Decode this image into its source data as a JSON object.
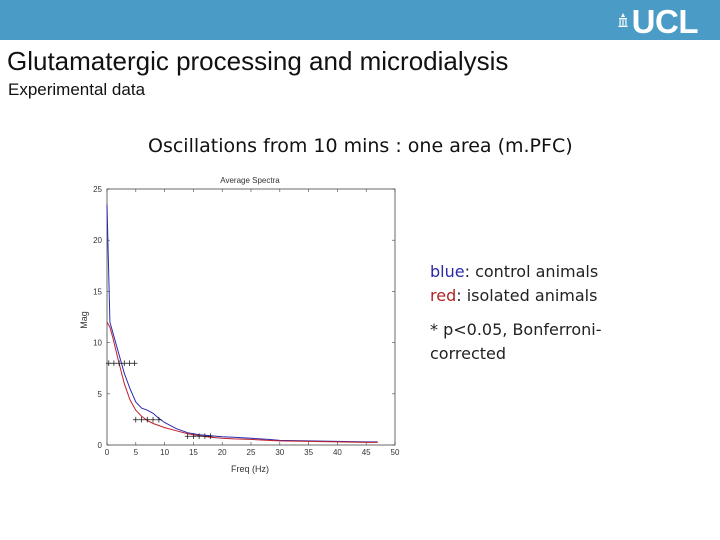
{
  "header": {
    "logo_text": "UCL",
    "bar_color": "#4a9bc6"
  },
  "slide": {
    "title": "Glutamatergic processing and microdialysis",
    "subtitle": "Experimental data",
    "heading": "Oscillations from 10 mins : one area (m.PFC)"
  },
  "legend": {
    "blue_word": "blue",
    "blue_rest": ": control animals",
    "red_word": "red",
    "red_rest": ": isolated animals",
    "note_line1": "* p<0.05, Bonferroni-",
    "note_line2": "corrected"
  },
  "chart_data": {
    "type": "line",
    "title": "Average Spectra",
    "xlabel": "Freq (Hz)",
    "ylabel": "Mag",
    "xlim": [
      0,
      50
    ],
    "ylim": [
      0,
      25
    ],
    "xticks": [
      0,
      5,
      10,
      15,
      20,
      25,
      30,
      35,
      40,
      45,
      50
    ],
    "yticks": [
      0,
      5,
      10,
      15,
      20,
      25
    ],
    "grid": false,
    "x": [
      0,
      0.5,
      1,
      2,
      3,
      4,
      5,
      6,
      7,
      8,
      9,
      10,
      12,
      14,
      16,
      18,
      20,
      22,
      25,
      28,
      30,
      35,
      40,
      45,
      47
    ],
    "series": [
      {
        "color": "#2a2ab0",
        "values": [
          23.5,
          12,
          11,
          9,
          7,
          5.5,
          4.2,
          3.6,
          3.4,
          3.1,
          2.6,
          2.2,
          1.6,
          1.2,
          1.0,
          0.9,
          0.8,
          0.75,
          0.65,
          0.55,
          0.45,
          0.4,
          0.35,
          0.3,
          0.3
        ]
      },
      {
        "color": "#c0202a",
        "values": [
          12,
          11.5,
          10.5,
          8.2,
          6,
          4.4,
          3.4,
          2.8,
          2.4,
          2.1,
          1.9,
          1.7,
          1.4,
          1.1,
          0.9,
          0.75,
          0.65,
          0.6,
          0.55,
          0.45,
          0.4,
          0.35,
          0.3,
          0.25,
          0.25
        ]
      }
    ],
    "significance_markers": {
      "symbol": "+",
      "groups": [
        {
          "x": [
            0.3,
            1.2,
            2.1,
            3.0,
            3.9,
            4.8
          ],
          "y": 8
        },
        {
          "x": [
            5.0,
            6.0,
            7.0,
            8.0,
            9.0
          ],
          "y": 2.5
        },
        {
          "x": [
            14.0,
            15.0,
            16.0,
            17.0,
            18.0
          ],
          "y": 0.9
        }
      ]
    }
  }
}
